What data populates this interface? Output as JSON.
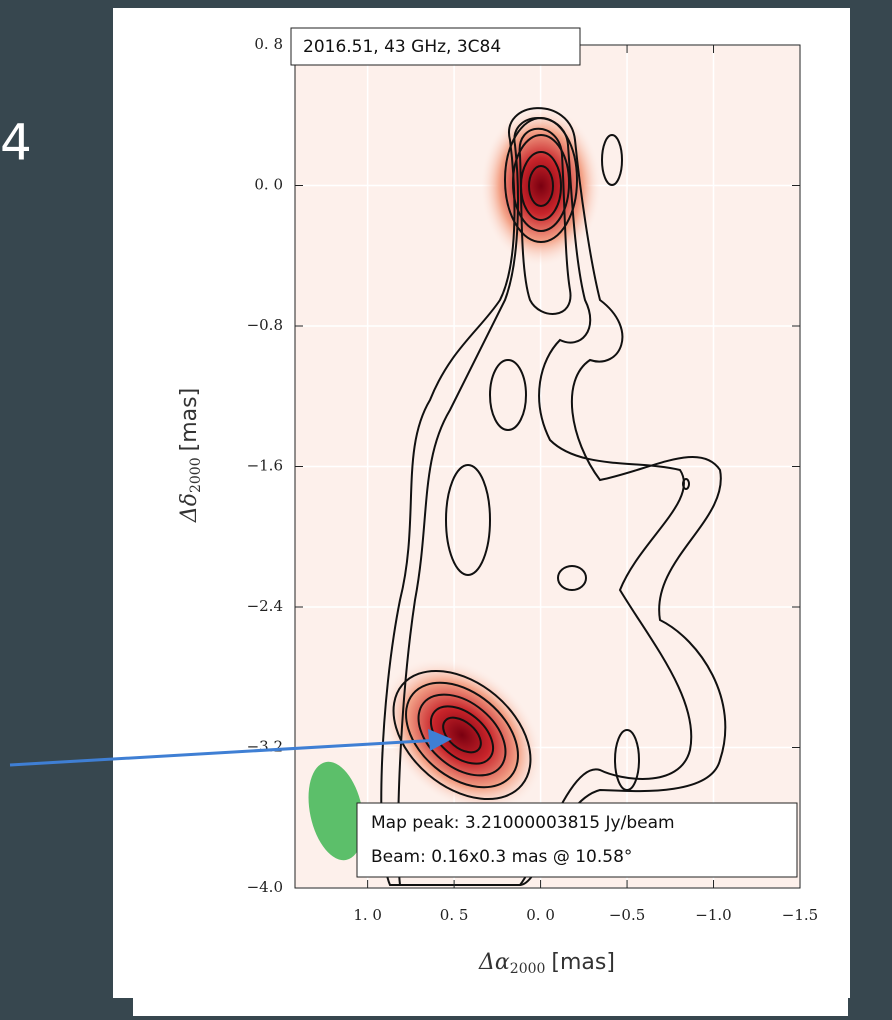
{
  "slide_number": "4",
  "chart_data": {
    "type": "contour",
    "title": "2016.51,  43 GHz,  3C84",
    "annotations": [
      "Map peak: 3.21000003815 Jy/beam",
      "Beam: 0.16x0.3 mas @ 10.58°"
    ],
    "xlabel": {
      "symbol": "Δα",
      "subscript": "2000",
      "unit": "[mas]"
    },
    "ylabel": {
      "symbol": "Δδ",
      "subscript": "2000",
      "unit": "[mas]"
    },
    "xlim": [
      1.42,
      -1.5
    ],
    "ylim": [
      -4.0,
      0.8
    ],
    "xticks": [
      {
        "value": 1.0,
        "label": "1. 0"
      },
      {
        "value": 0.5,
        "label": "0. 5"
      },
      {
        "value": 0.0,
        "label": "0. 0"
      },
      {
        "value": -0.5,
        "label": "−0.5"
      },
      {
        "value": -1.0,
        "label": "−1.0"
      },
      {
        "value": -1.5,
        "label": "−1.5"
      }
    ],
    "yticks": [
      {
        "value": 0.8,
        "label": "0. 8"
      },
      {
        "value": 0.0,
        "label": "0. 0"
      },
      {
        "value": -0.8,
        "label": "−0.8"
      },
      {
        "value": -1.6,
        "label": "−1.6"
      },
      {
        "value": -2.4,
        "label": "−2.4"
      },
      {
        "value": -3.2,
        "label": "−3.2"
      },
      {
        "value": -4.0,
        "label": "−4.0"
      }
    ],
    "grid": true
  }
}
